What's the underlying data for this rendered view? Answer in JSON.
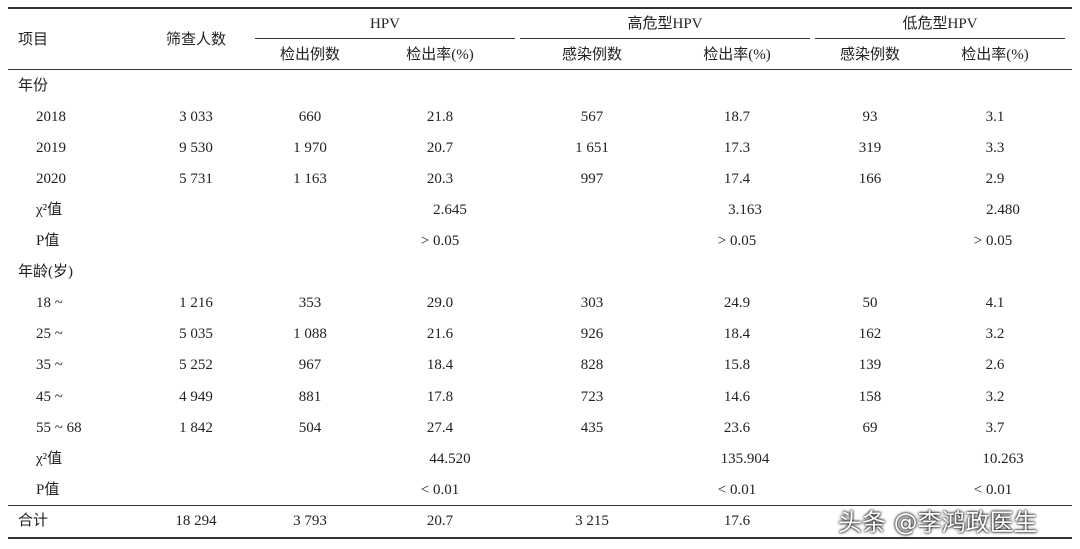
{
  "table": {
    "header": {
      "item": "项目",
      "screened": "筛查人数",
      "groups": [
        {
          "title": "HPV",
          "cols": [
            "检出例数",
            "检出率(%)"
          ]
        },
        {
          "title": "高危型HPV",
          "cols": [
            "感染例数",
            "检出率(%)"
          ]
        },
        {
          "title": "低危型HPV",
          "cols": [
            "感染例数",
            "检出率(%)"
          ]
        }
      ]
    },
    "rows": [
      [
        "年份"
      ],
      [
        "2018",
        "3 033",
        "660",
        "21.8",
        "567",
        "18.7",
        "93",
        "3.1"
      ],
      [
        "2019",
        "9 530",
        "1 970",
        "20.7",
        "1 651",
        "17.3",
        "319",
        "3.3"
      ],
      [
        "2020",
        "5 731",
        "1 163",
        "20.3",
        "997",
        "17.4",
        "166",
        "2.9"
      ],
      [
        "χ²值",
        "2.645",
        "3.163",
        "2.480"
      ],
      [
        "P值",
        "> 0.05",
        "> 0.05",
        "> 0.05"
      ],
      [
        "年龄(岁)"
      ],
      [
        "18 ~",
        "1 216",
        "353",
        "29.0",
        "303",
        "24.9",
        "50",
        "4.1"
      ],
      [
        "25 ~",
        "5 035",
        "1 088",
        "21.6",
        "926",
        "18.4",
        "162",
        "3.2"
      ],
      [
        "35 ~",
        "5 252",
        "967",
        "18.4",
        "828",
        "15.8",
        "139",
        "2.6"
      ],
      [
        "45 ~",
        "4 949",
        "881",
        "17.8",
        "723",
        "14.6",
        "158",
        "3.2"
      ],
      [
        "55 ~ 68",
        "1 842",
        "504",
        "27.4",
        "435",
        "23.6",
        "69",
        "3.7"
      ],
      [
        "χ²值",
        "44.520",
        "135.904",
        "10.263"
      ],
      [
        "P值",
        "< 0.01",
        "< 0.01",
        "< 0.01"
      ],
      [
        "合计",
        "18 294",
        "3 793",
        "20.7",
        "3 215",
        "17.6"
      ]
    ]
  },
  "watermark": "头条 @李鸿政医生"
}
